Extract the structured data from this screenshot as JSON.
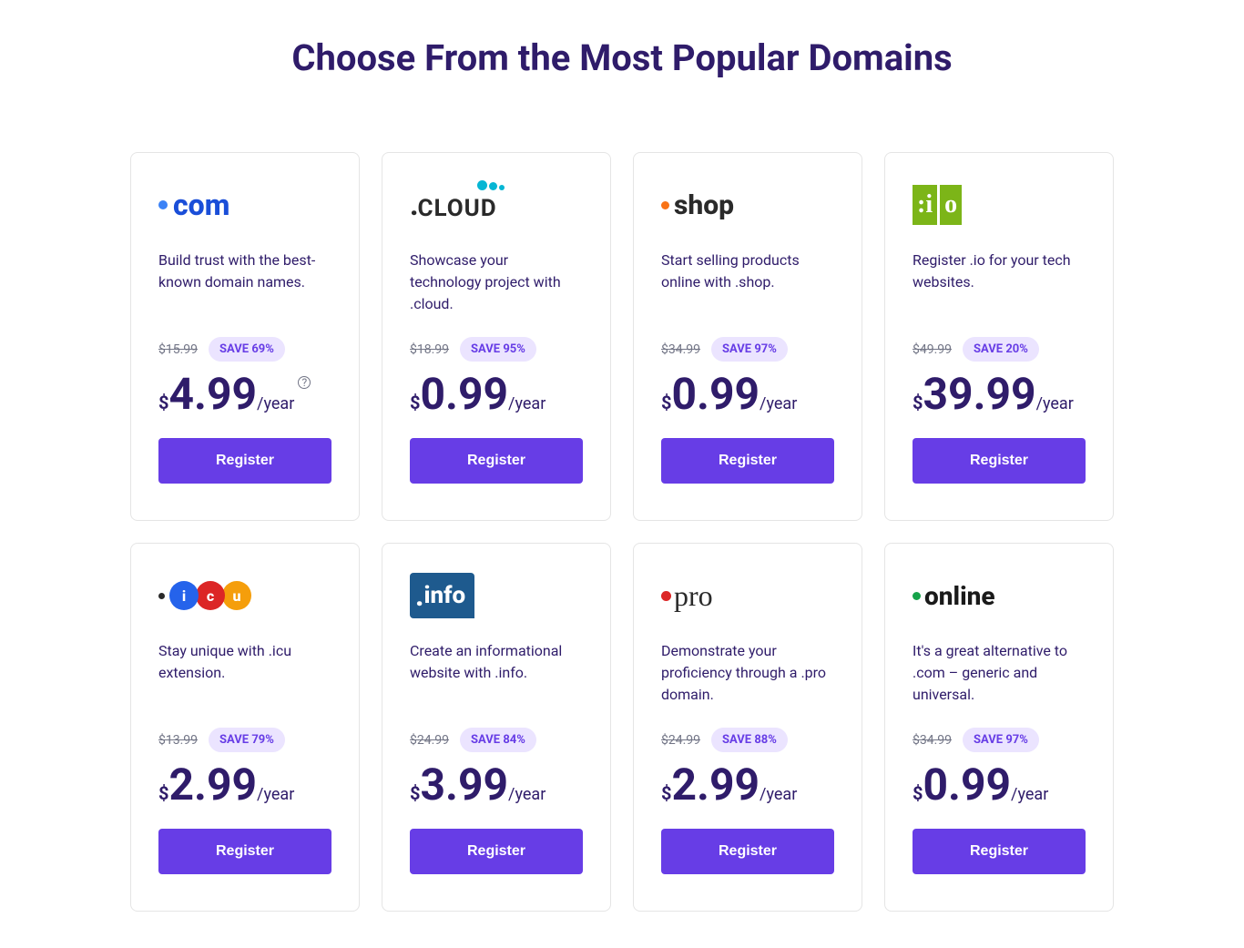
{
  "title": "Choose From the Most Popular Domains",
  "colors": {
    "heading": "#2f1c6a",
    "button_bg": "#673de6",
    "button_text": "#ffffff",
    "badge_bg": "#ebe4ff",
    "badge_text": "#673de6",
    "old_price": "#727586",
    "card_border": "#e5e5e5",
    "background": "#ffffff"
  },
  "period_label": "/year",
  "currency": "$",
  "register_label": "Register",
  "domains": [
    {
      "id": "com",
      "tld": ".com",
      "description": "Build trust with the best-known domain names.",
      "old_price": "$15.99",
      "save": "SAVE 69%",
      "price": "4.99",
      "has_info": true
    },
    {
      "id": "cloud",
      "tld": ".CLOUD",
      "description": "Showcase your technology project with .cloud.",
      "old_price": "$18.99",
      "save": "SAVE 95%",
      "price": "0.99",
      "has_info": false
    },
    {
      "id": "shop",
      "tld": ".shop",
      "description": "Start selling products online with .shop.",
      "old_price": "$34.99",
      "save": "SAVE 97%",
      "price": "0.99",
      "has_info": false
    },
    {
      "id": "io",
      "tld": ":io",
      "description": "Register .io for your tech websites.",
      "old_price": "$49.99",
      "save": "SAVE 20%",
      "price": "39.99",
      "has_info": false
    },
    {
      "id": "icu",
      "tld": ".icu",
      "description": "Stay unique with .icu extension.",
      "old_price": "$13.99",
      "save": "SAVE 79%",
      "price": "2.99",
      "has_info": false
    },
    {
      "id": "info",
      "tld": ".info",
      "description": "Create an informational website with .info.",
      "old_price": "$24.99",
      "save": "SAVE 84%",
      "price": "3.99",
      "has_info": false
    },
    {
      "id": "pro",
      "tld": ".pro",
      "description": "Demonstrate your proficiency through a .pro domain.",
      "old_price": "$24.99",
      "save": "SAVE 88%",
      "price": "2.99",
      "has_info": false
    },
    {
      "id": "online",
      "tld": ".online",
      "description": "It's a great alternative to .com – generic and universal.",
      "old_price": "$34.99",
      "save": "SAVE 97%",
      "price": "0.99",
      "has_info": false
    }
  ]
}
